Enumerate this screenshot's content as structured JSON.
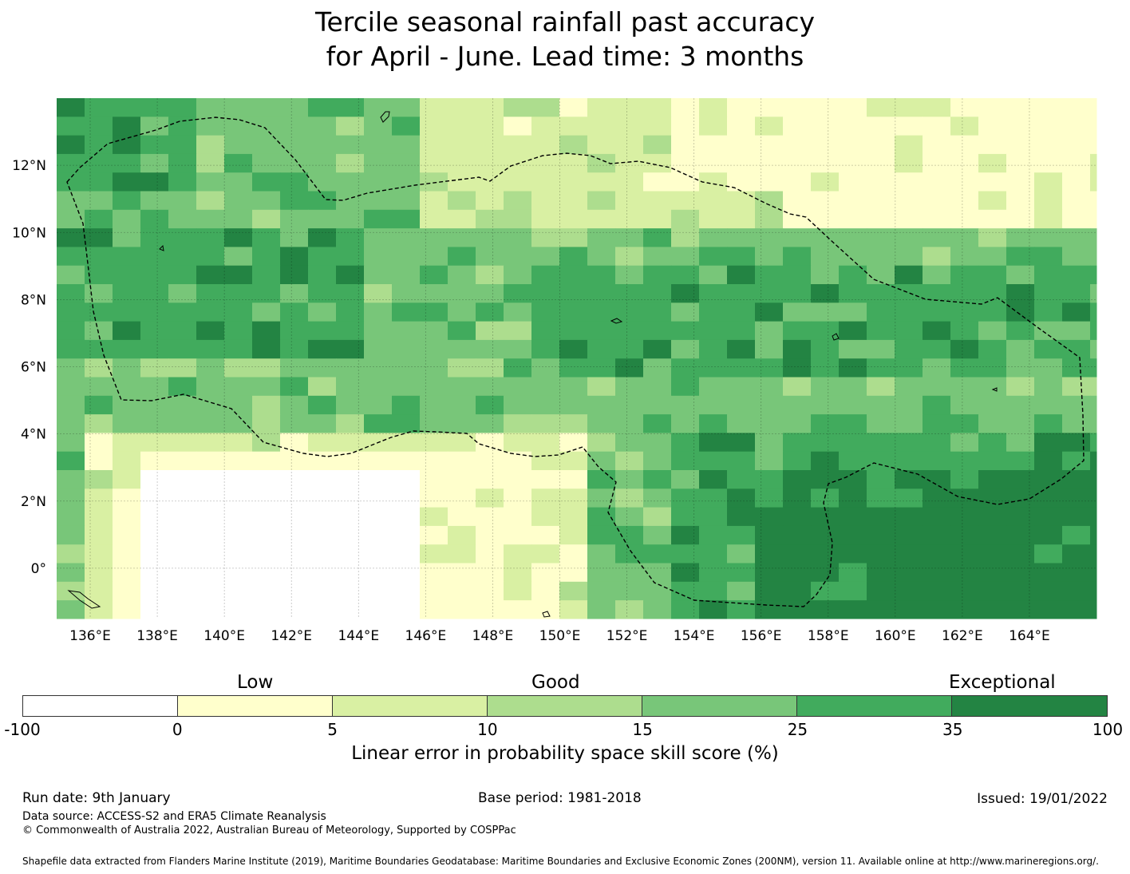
{
  "title": {
    "line1": "Tercile seasonal rainfall past accuracy",
    "line2": "for April - June. Lead time: 3 months"
  },
  "map": {
    "lon_ticks": [
      "136°E",
      "138°E",
      "140°E",
      "142°E",
      "144°E",
      "146°E",
      "148°E",
      "150°E",
      "152°E",
      "154°E",
      "156°E",
      "158°E",
      "160°E",
      "162°E",
      "164°E"
    ],
    "lat_ticks": [
      "12°N",
      "10°N",
      "8°N",
      "6°N",
      "4°N",
      "2°N",
      "0°"
    ],
    "lon_values": [
      136,
      138,
      140,
      142,
      144,
      146,
      148,
      150,
      152,
      154,
      156,
      158,
      160,
      162,
      164
    ],
    "lat_values": [
      12,
      10,
      8,
      6,
      4,
      2,
      0
    ],
    "extent": {
      "lon_min": 135,
      "lon_max": 166,
      "lat_min": -1.5,
      "lat_max": 14
    },
    "eez_boundary": "Federated States of Micronesia EEZ (dashed)",
    "grid_rows_lat_top": 14,
    "grid_step_deg": 0.83
  },
  "colorbar": {
    "labels": {
      "low": "Low",
      "good": "Good",
      "exceptional": "Exceptional"
    },
    "bounds": [
      "-100",
      "0",
      "5",
      "10",
      "15",
      "25",
      "35",
      "100"
    ],
    "colors": [
      "#ffffff",
      "#ffffcc",
      "#d9f0a3",
      "#addd8e",
      "#78c679",
      "#41ab5d",
      "#238443"
    ],
    "xlabel": "Linear error in probability space skill score (%)"
  },
  "footer": {
    "run_date": "Run date: 9th January",
    "base_period": "Base period: 1981-2018",
    "issued": "Issued: 19/01/2022",
    "data_source": "Data source: ACCESS-S2 and ERA5 Climate Reanalysis",
    "copyright": "© Commonwealth of Australia 2022, Australian Bureau of Meteorology, Supported by COSPPac",
    "shapefile": "Shapefile data extracted from Flanders Marine Institute (2019), Maritime Boundaries Geodatabase: Maritime Boundaries and Exclusive Economic Zones (200NM), version 11. Available online at http://www.marineregions.org/."
  }
}
